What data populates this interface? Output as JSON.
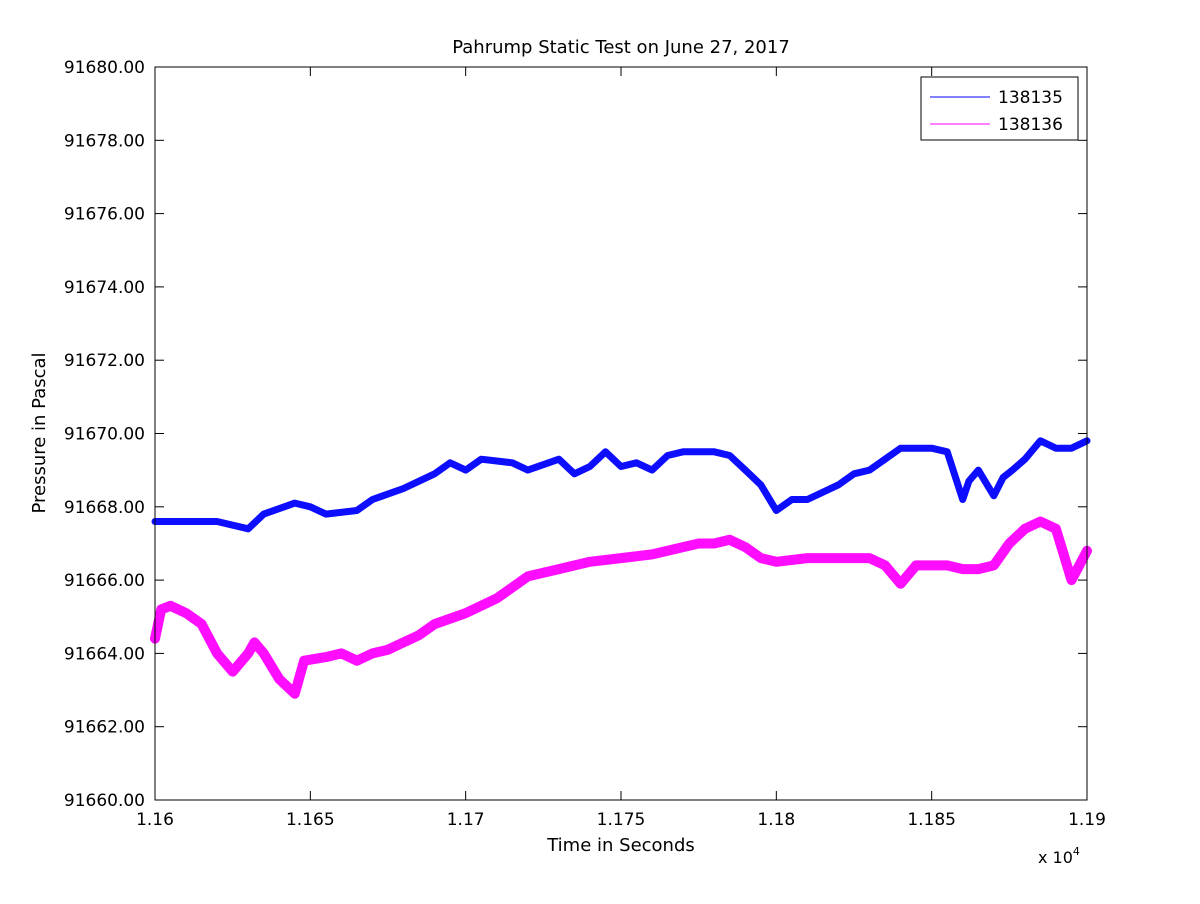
{
  "chart_data": {
    "type": "line",
    "title": "Pahrump Static Test on June 27, 2017",
    "xlabel": "Time in Seconds",
    "ylabel": "Pressure in Pascal",
    "x_multiplier_label": "x 10",
    "x_multiplier_exponent": "4",
    "xlim": [
      11600,
      11900
    ],
    "ylim": [
      91660,
      91680
    ],
    "x_ticks": [
      11600,
      11650,
      11700,
      11750,
      11800,
      11850,
      11900
    ],
    "x_tick_labels": [
      "1.16",
      "1.165",
      "1.17",
      "1.175",
      "1.18",
      "1.185",
      "1.19"
    ],
    "y_ticks": [
      91660,
      91662,
      91664,
      91666,
      91668,
      91670,
      91672,
      91674,
      91676,
      91678,
      91680
    ],
    "y_tick_labels": [
      "91660.00",
      "91662.00",
      "91664.00",
      "91666.00",
      "91668.00",
      "91670.00",
      "91672.00",
      "91674.00",
      "91676.00",
      "91678.00",
      "91680.00"
    ],
    "grid": false,
    "legend_position": "top-right",
    "series": [
      {
        "name": "138135",
        "color": "#0000ff",
        "x": [
          11600,
          11610,
          11620,
          11630,
          11635,
          11645,
          11650,
          11655,
          11665,
          11670,
          11680,
          11690,
          11695,
          11700,
          11705,
          11715,
          11720,
          11730,
          11735,
          11740,
          11745,
          11750,
          11755,
          11760,
          11765,
          11770,
          11780,
          11785,
          11790,
          11795,
          11800,
          11805,
          11810,
          11820,
          11825,
          11830,
          11840,
          11845,
          11850,
          11855,
          11860,
          11862,
          11865,
          11870,
          11873,
          11876,
          11880,
          11885,
          11890,
          11895,
          11900
        ],
        "y": [
          91667.6,
          91667.6,
          91667.6,
          91667.4,
          91667.8,
          91668.1,
          91668.0,
          91667.8,
          91667.9,
          91668.2,
          91668.5,
          91668.9,
          91669.2,
          91669.0,
          91669.3,
          91669.2,
          91669.0,
          91669.3,
          91668.9,
          91669.1,
          91669.5,
          91669.1,
          91669.2,
          91669.0,
          91669.4,
          91669.5,
          91669.5,
          91669.4,
          91669.0,
          91668.6,
          91667.9,
          91668.2,
          91668.2,
          91668.6,
          91668.9,
          91669.0,
          91669.6,
          91669.6,
          91669.6,
          91669.5,
          91668.2,
          91668.7,
          91669.0,
          91668.3,
          91668.8,
          91669.0,
          91669.3,
          91669.8,
          91669.6,
          91669.6,
          91669.8
        ]
      },
      {
        "name": "138136",
        "color": "#ff00ff",
        "x": [
          11600,
          11602,
          11605,
          11610,
          11615,
          11620,
          11625,
          11630,
          11632,
          11635,
          11640,
          11645,
          11648,
          11655,
          11660,
          11665,
          11670,
          11675,
          11680,
          11685,
          11690,
          11700,
          11710,
          11715,
          11720,
          11730,
          11740,
          11750,
          11760,
          11765,
          11770,
          11775,
          11780,
          11785,
          11790,
          11795,
          11800,
          11810,
          11820,
          11830,
          11835,
          11840,
          11845,
          11850,
          11855,
          11860,
          11865,
          11870,
          11875,
          11880,
          11885,
          11890,
          11895,
          11900
        ],
        "y": [
          91664.4,
          91665.2,
          91665.3,
          91665.1,
          91664.8,
          91664.0,
          91663.5,
          91664.0,
          91664.3,
          91664.0,
          91663.3,
          91662.9,
          91663.8,
          91663.9,
          91664.0,
          91663.8,
          91664.0,
          91664.1,
          91664.3,
          91664.5,
          91664.8,
          91665.1,
          91665.5,
          91665.8,
          91666.1,
          91666.3,
          91666.5,
          91666.6,
          91666.7,
          91666.8,
          91666.9,
          91667.0,
          91667.0,
          91667.1,
          91666.9,
          91666.6,
          91666.5,
          91666.6,
          91666.6,
          91666.6,
          91666.4,
          91665.9,
          91666.4,
          91666.4,
          91666.4,
          91666.3,
          91666.3,
          91666.4,
          91667.0,
          91667.4,
          91667.6,
          91667.4,
          91666.0,
          91666.8
        ]
      }
    ]
  }
}
